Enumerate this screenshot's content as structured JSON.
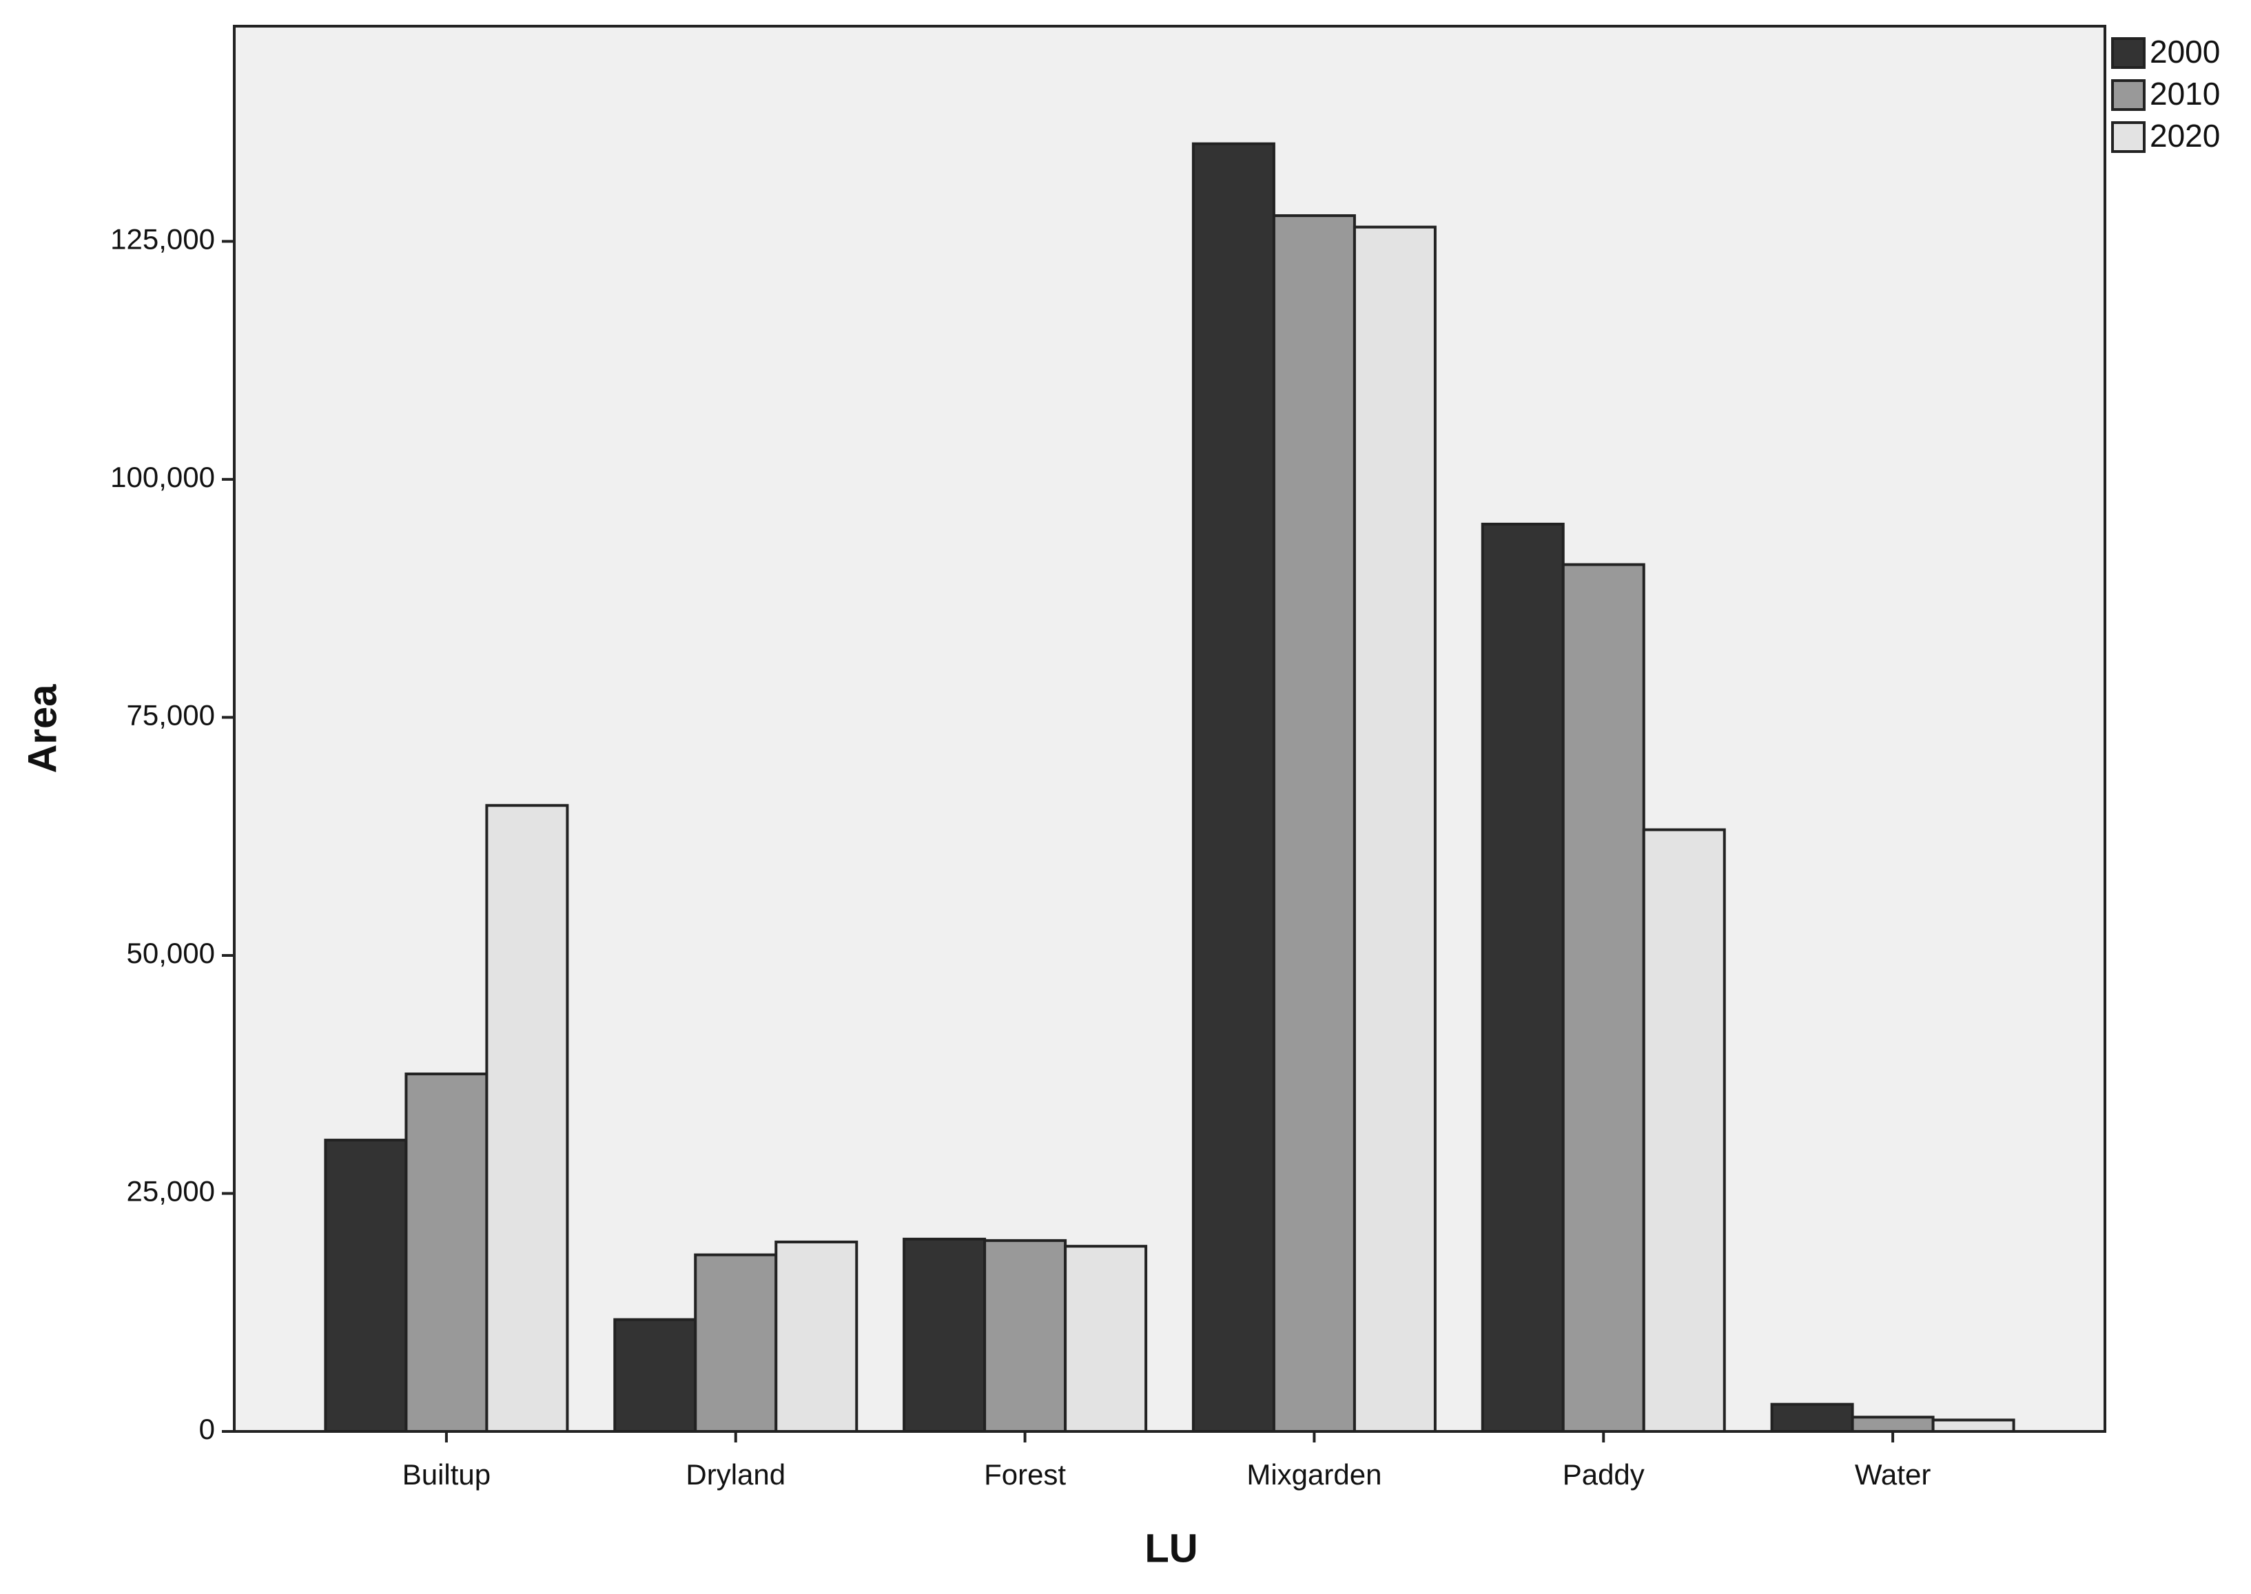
{
  "chart_data": {
    "type": "bar",
    "x_label": "LU",
    "y_label": "Area",
    "categories": [
      "Builtup",
      "Dryland",
      "Forest",
      "Mixgarden",
      "Paddy",
      "Water"
    ],
    "series": [
      {
        "name": "2000",
        "color": "#333333",
        "values": [
          30600,
          11750,
          20200,
          135250,
          95300,
          2850
        ]
      },
      {
        "name": "2010",
        "color": "#999999",
        "values": [
          37550,
          18550,
          20050,
          127700,
          91050,
          1500
        ]
      },
      {
        "name": "2020",
        "color": "#e3e3e3",
        "values": [
          65750,
          19900,
          19450,
          126500,
          63200,
          1200
        ]
      }
    ],
    "ylim": [
      0,
      147600
    ],
    "yticks": [
      0,
      {
        "value": 25000,
        "label": "25,000"
      },
      {
        "value": 50000,
        "label": "50,000"
      },
      {
        "value": 75000,
        "label": "75,000"
      },
      {
        "value": 100000,
        "label": "100,000"
      },
      {
        "value": 125000,
        "label": "125,000"
      }
    ],
    "grid": false,
    "legend": "top-right"
  }
}
